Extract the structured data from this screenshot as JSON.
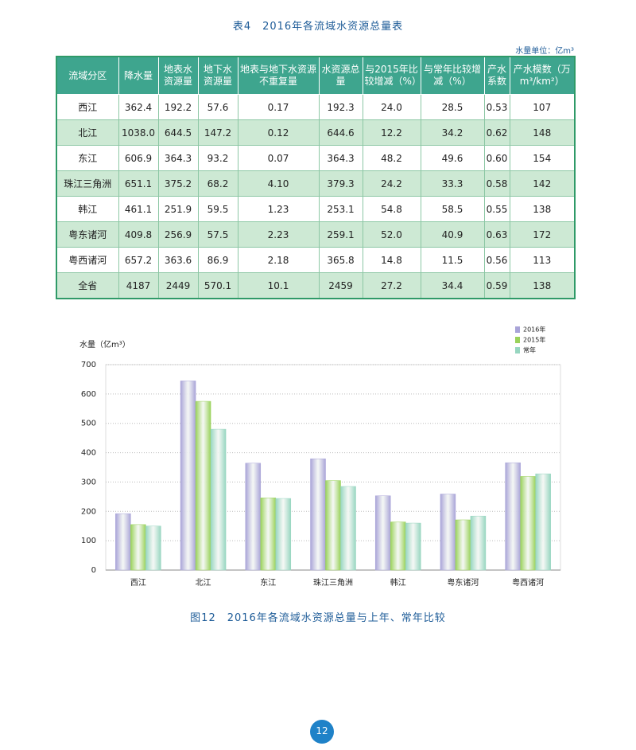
{
  "table_title": "表4　2016年各流域水资源总量表",
  "unit_note": "水量单位：亿m³",
  "table": {
    "headers": [
      "流域分区",
      "降水量",
      "地表水资源量",
      "地下水资源量",
      "地表与地下水资源不重复量",
      "水资源总量",
      "与2015年比较增减（%）",
      "与常年比较增减（%）",
      "产水系数",
      "产水模数（万m³/km²）"
    ],
    "rows": [
      [
        "西江",
        "362.4",
        "192.2",
        "57.6",
        "0.17",
        "192.3",
        "24.0",
        "28.5",
        "0.53",
        "107"
      ],
      [
        "北江",
        "1038.0",
        "644.5",
        "147.2",
        "0.12",
        "644.6",
        "12.2",
        "34.2",
        "0.62",
        "148"
      ],
      [
        "东江",
        "606.9",
        "364.3",
        "93.2",
        "0.07",
        "364.3",
        "48.2",
        "49.6",
        "0.60",
        "154"
      ],
      [
        "珠江三角洲",
        "651.1",
        "375.2",
        "68.2",
        "4.10",
        "379.3",
        "24.2",
        "33.3",
        "0.58",
        "142"
      ],
      [
        "韩江",
        "461.1",
        "251.9",
        "59.5",
        "1.23",
        "253.1",
        "54.8",
        "58.5",
        "0.55",
        "138"
      ],
      [
        "粤东诸河",
        "409.8",
        "256.9",
        "57.5",
        "2.23",
        "259.1",
        "52.0",
        "40.9",
        "0.63",
        "172"
      ],
      [
        "粤西诸河",
        "657.2",
        "363.6",
        "86.9",
        "2.18",
        "365.8",
        "14.8",
        "11.5",
        "0.56",
        "113"
      ],
      [
        "全省",
        "4187",
        "2449",
        "570.1",
        "10.1",
        "2459",
        "27.2",
        "34.4",
        "0.59",
        "138"
      ]
    ]
  },
  "chart_data": {
    "type": "bar",
    "y_label": "水量（亿m³）",
    "categories": [
      "西江",
      "北江",
      "东江",
      "珠江三角洲",
      "韩江",
      "粤东诸河",
      "粤西诸河"
    ],
    "series": [
      {
        "name": "2016年",
        "color": "#a9a4d8",
        "values": [
          192.3,
          644.6,
          364.3,
          379.3,
          253.1,
          259.1,
          365.8
        ]
      },
      {
        "name": "2015年",
        "color": "#9ad25a",
        "values": [
          155,
          575,
          246,
          305,
          164,
          171,
          319
        ]
      },
      {
        "name": "常年",
        "color": "#97d6c0",
        "values": [
          150,
          480,
          244,
          285,
          160,
          184,
          328
        ]
      }
    ],
    "ylim": [
      0,
      700
    ],
    "yticks": [
      0,
      100,
      200,
      300,
      400,
      500,
      600,
      700
    ],
    "grid": true,
    "legend": "upper right"
  },
  "caption": "图12　2016年各流域水资源总量与上年、常年比较",
  "page_number": "12"
}
